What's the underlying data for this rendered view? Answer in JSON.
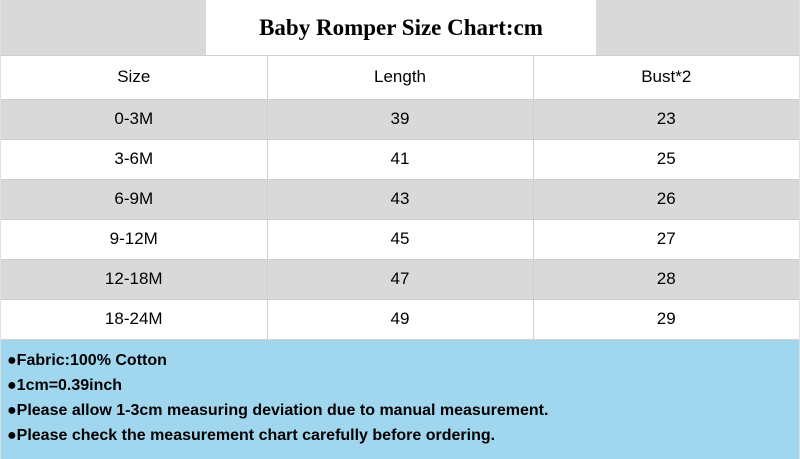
{
  "title": "Baby Romper Size Chart:cm",
  "chart_data": {
    "type": "table",
    "title": "Baby Romper Size Chart:cm",
    "columns": [
      "Size",
      "Length",
      "Bust*2"
    ],
    "rows": [
      [
        "0-3M",
        "39",
        "23"
      ],
      [
        "3-6M",
        "41",
        "25"
      ],
      [
        "6-9M",
        "43",
        "26"
      ],
      [
        "9-12M",
        "45",
        "27"
      ],
      [
        "12-18M",
        "47",
        "28"
      ],
      [
        "18-24M",
        "49",
        "29"
      ]
    ]
  },
  "notes": [
    "●Fabric:100% Cotton",
    "●1cm=0.39inch",
    "●Please allow 1-3cm measuring deviation due to manual measurement.",
    "●Please check the measurement chart carefully before ordering."
  ],
  "colors": {
    "alt_row_gray": "#d9d9d9",
    "notes_blue": "#a0d6ee",
    "border_gray": "#cfcfcf"
  }
}
